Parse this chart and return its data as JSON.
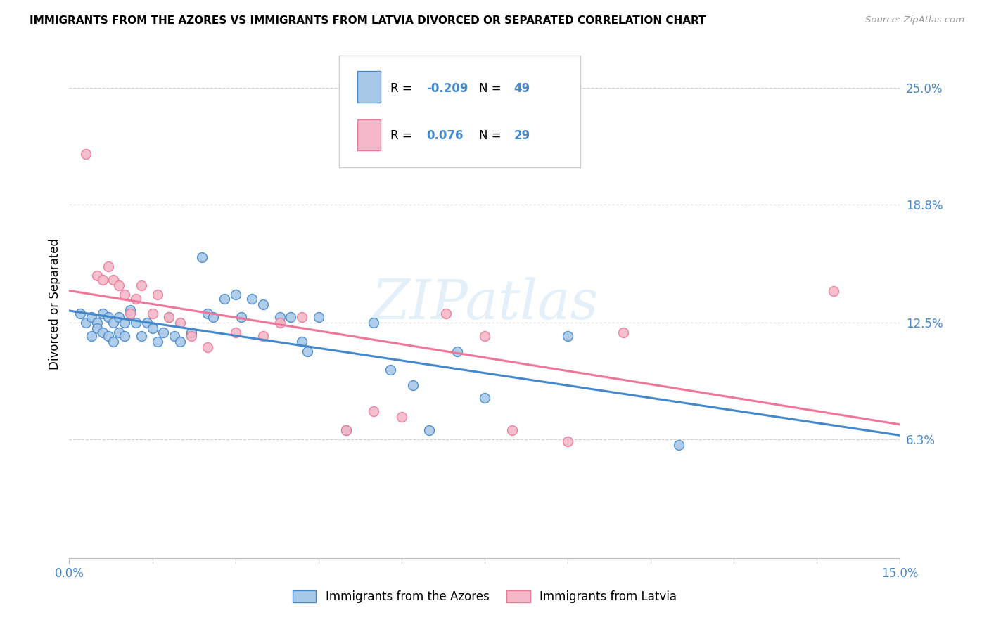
{
  "title": "IMMIGRANTS FROM THE AZORES VS IMMIGRANTS FROM LATVIA DIVORCED OR SEPARATED CORRELATION CHART",
  "source": "Source: ZipAtlas.com",
  "ylabel": "Divorced or Separated",
  "xlim": [
    0.0,
    0.15
  ],
  "ylim": [
    0.0,
    0.27
  ],
  "ytick_labels": [
    "6.3%",
    "12.5%",
    "18.8%",
    "25.0%"
  ],
  "ytick_values": [
    0.063,
    0.125,
    0.188,
    0.25
  ],
  "blue_R": -0.209,
  "blue_N": 49,
  "pink_R": 0.076,
  "pink_N": 29,
  "blue_color": "#a8c8e8",
  "pink_color": "#f5b8c8",
  "line_blue": "#4488cc",
  "line_pink": "#ee7799",
  "watermark": "ZIPatlas",
  "blue_points_x": [
    0.002,
    0.003,
    0.004,
    0.004,
    0.005,
    0.005,
    0.006,
    0.006,
    0.007,
    0.007,
    0.008,
    0.008,
    0.009,
    0.009,
    0.01,
    0.01,
    0.011,
    0.012,
    0.013,
    0.014,
    0.015,
    0.016,
    0.017,
    0.018,
    0.019,
    0.02,
    0.022,
    0.024,
    0.025,
    0.026,
    0.028,
    0.03,
    0.031,
    0.033,
    0.035,
    0.038,
    0.04,
    0.042,
    0.043,
    0.045,
    0.05,
    0.055,
    0.058,
    0.062,
    0.065,
    0.07,
    0.075,
    0.09,
    0.11
  ],
  "blue_points_y": [
    0.13,
    0.125,
    0.128,
    0.118,
    0.125,
    0.122,
    0.13,
    0.12,
    0.128,
    0.118,
    0.125,
    0.115,
    0.128,
    0.12,
    0.125,
    0.118,
    0.132,
    0.125,
    0.118,
    0.125,
    0.122,
    0.115,
    0.12,
    0.128,
    0.118,
    0.115,
    0.12,
    0.16,
    0.13,
    0.128,
    0.138,
    0.14,
    0.128,
    0.138,
    0.135,
    0.128,
    0.128,
    0.115,
    0.11,
    0.128,
    0.068,
    0.125,
    0.1,
    0.092,
    0.068,
    0.11,
    0.085,
    0.118,
    0.06
  ],
  "pink_points_x": [
    0.003,
    0.005,
    0.006,
    0.007,
    0.008,
    0.009,
    0.01,
    0.011,
    0.012,
    0.013,
    0.015,
    0.016,
    0.018,
    0.02,
    0.022,
    0.025,
    0.03,
    0.035,
    0.038,
    0.042,
    0.05,
    0.055,
    0.06,
    0.068,
    0.075,
    0.08,
    0.09,
    0.1,
    0.138
  ],
  "pink_points_y": [
    0.215,
    0.15,
    0.148,
    0.155,
    0.148,
    0.145,
    0.14,
    0.13,
    0.138,
    0.145,
    0.13,
    0.14,
    0.128,
    0.125,
    0.118,
    0.112,
    0.12,
    0.118,
    0.125,
    0.128,
    0.068,
    0.078,
    0.075,
    0.13,
    0.118,
    0.068,
    0.062,
    0.12,
    0.142
  ]
}
